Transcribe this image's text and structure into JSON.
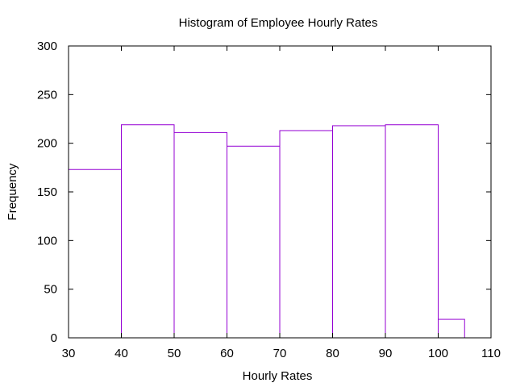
{
  "chart_data": {
    "type": "bar",
    "title": "Histogram of Employee Hourly Rates",
    "xlabel": "Hourly Rates",
    "ylabel": "Frequency",
    "xlim": [
      30,
      110
    ],
    "ylim": [
      0,
      300
    ],
    "xticks": [
      "30",
      "40",
      "50",
      "60",
      "70",
      "80",
      "90",
      "100",
      "110"
    ],
    "yticks": [
      "0",
      "50",
      "100",
      "150",
      "200",
      "250",
      "300"
    ],
    "bins": [
      {
        "start": 30,
        "end": 40,
        "value": 173
      },
      {
        "start": 40,
        "end": 50,
        "value": 219
      },
      {
        "start": 50,
        "end": 60,
        "value": 211
      },
      {
        "start": 60,
        "end": 70,
        "value": 197
      },
      {
        "start": 70,
        "end": 80,
        "value": 213
      },
      {
        "start": 80,
        "end": 90,
        "value": 218
      },
      {
        "start": 90,
        "end": 100,
        "value": 219
      },
      {
        "start": 100,
        "end": 105,
        "value": 19
      }
    ],
    "bar_color": "#9400d3",
    "grid": false
  }
}
